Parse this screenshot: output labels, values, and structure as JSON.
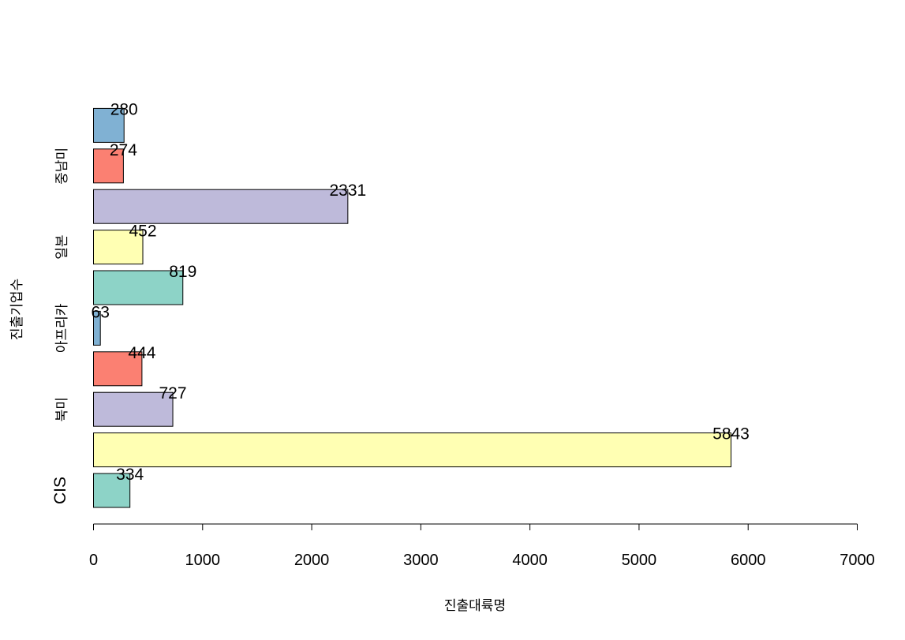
{
  "chart_data": {
    "type": "bar",
    "orientation": "horizontal",
    "title": "",
    "xlabel": "진출대륙명",
    "ylabel": "진출기업수",
    "xlim": [
      0,
      7000
    ],
    "xticks": [
      0,
      1000,
      2000,
      3000,
      4000,
      5000,
      6000,
      7000
    ],
    "grid": false,
    "values": [
      334,
      5843,
      727,
      444,
      63,
      819,
      452,
      2331,
      274,
      280
    ],
    "bar_colors": [
      "#8DD3C7",
      "#FFFFB3",
      "#BEBADA",
      "#FB8072",
      "#80B1D3",
      "#8DD3C7",
      "#FFFFB3",
      "#BEBADA",
      "#FB8072",
      "#80B1D3"
    ],
    "category_labels": [
      {
        "bar_index": 0,
        "label": "CIS"
      },
      {
        "bar_index": 2,
        "label": "북미"
      },
      {
        "bar_index": 4,
        "label": "아프리카"
      },
      {
        "bar_index": 6,
        "label": "일본"
      },
      {
        "bar_index": 8,
        "label": "중남미"
      }
    ]
  }
}
